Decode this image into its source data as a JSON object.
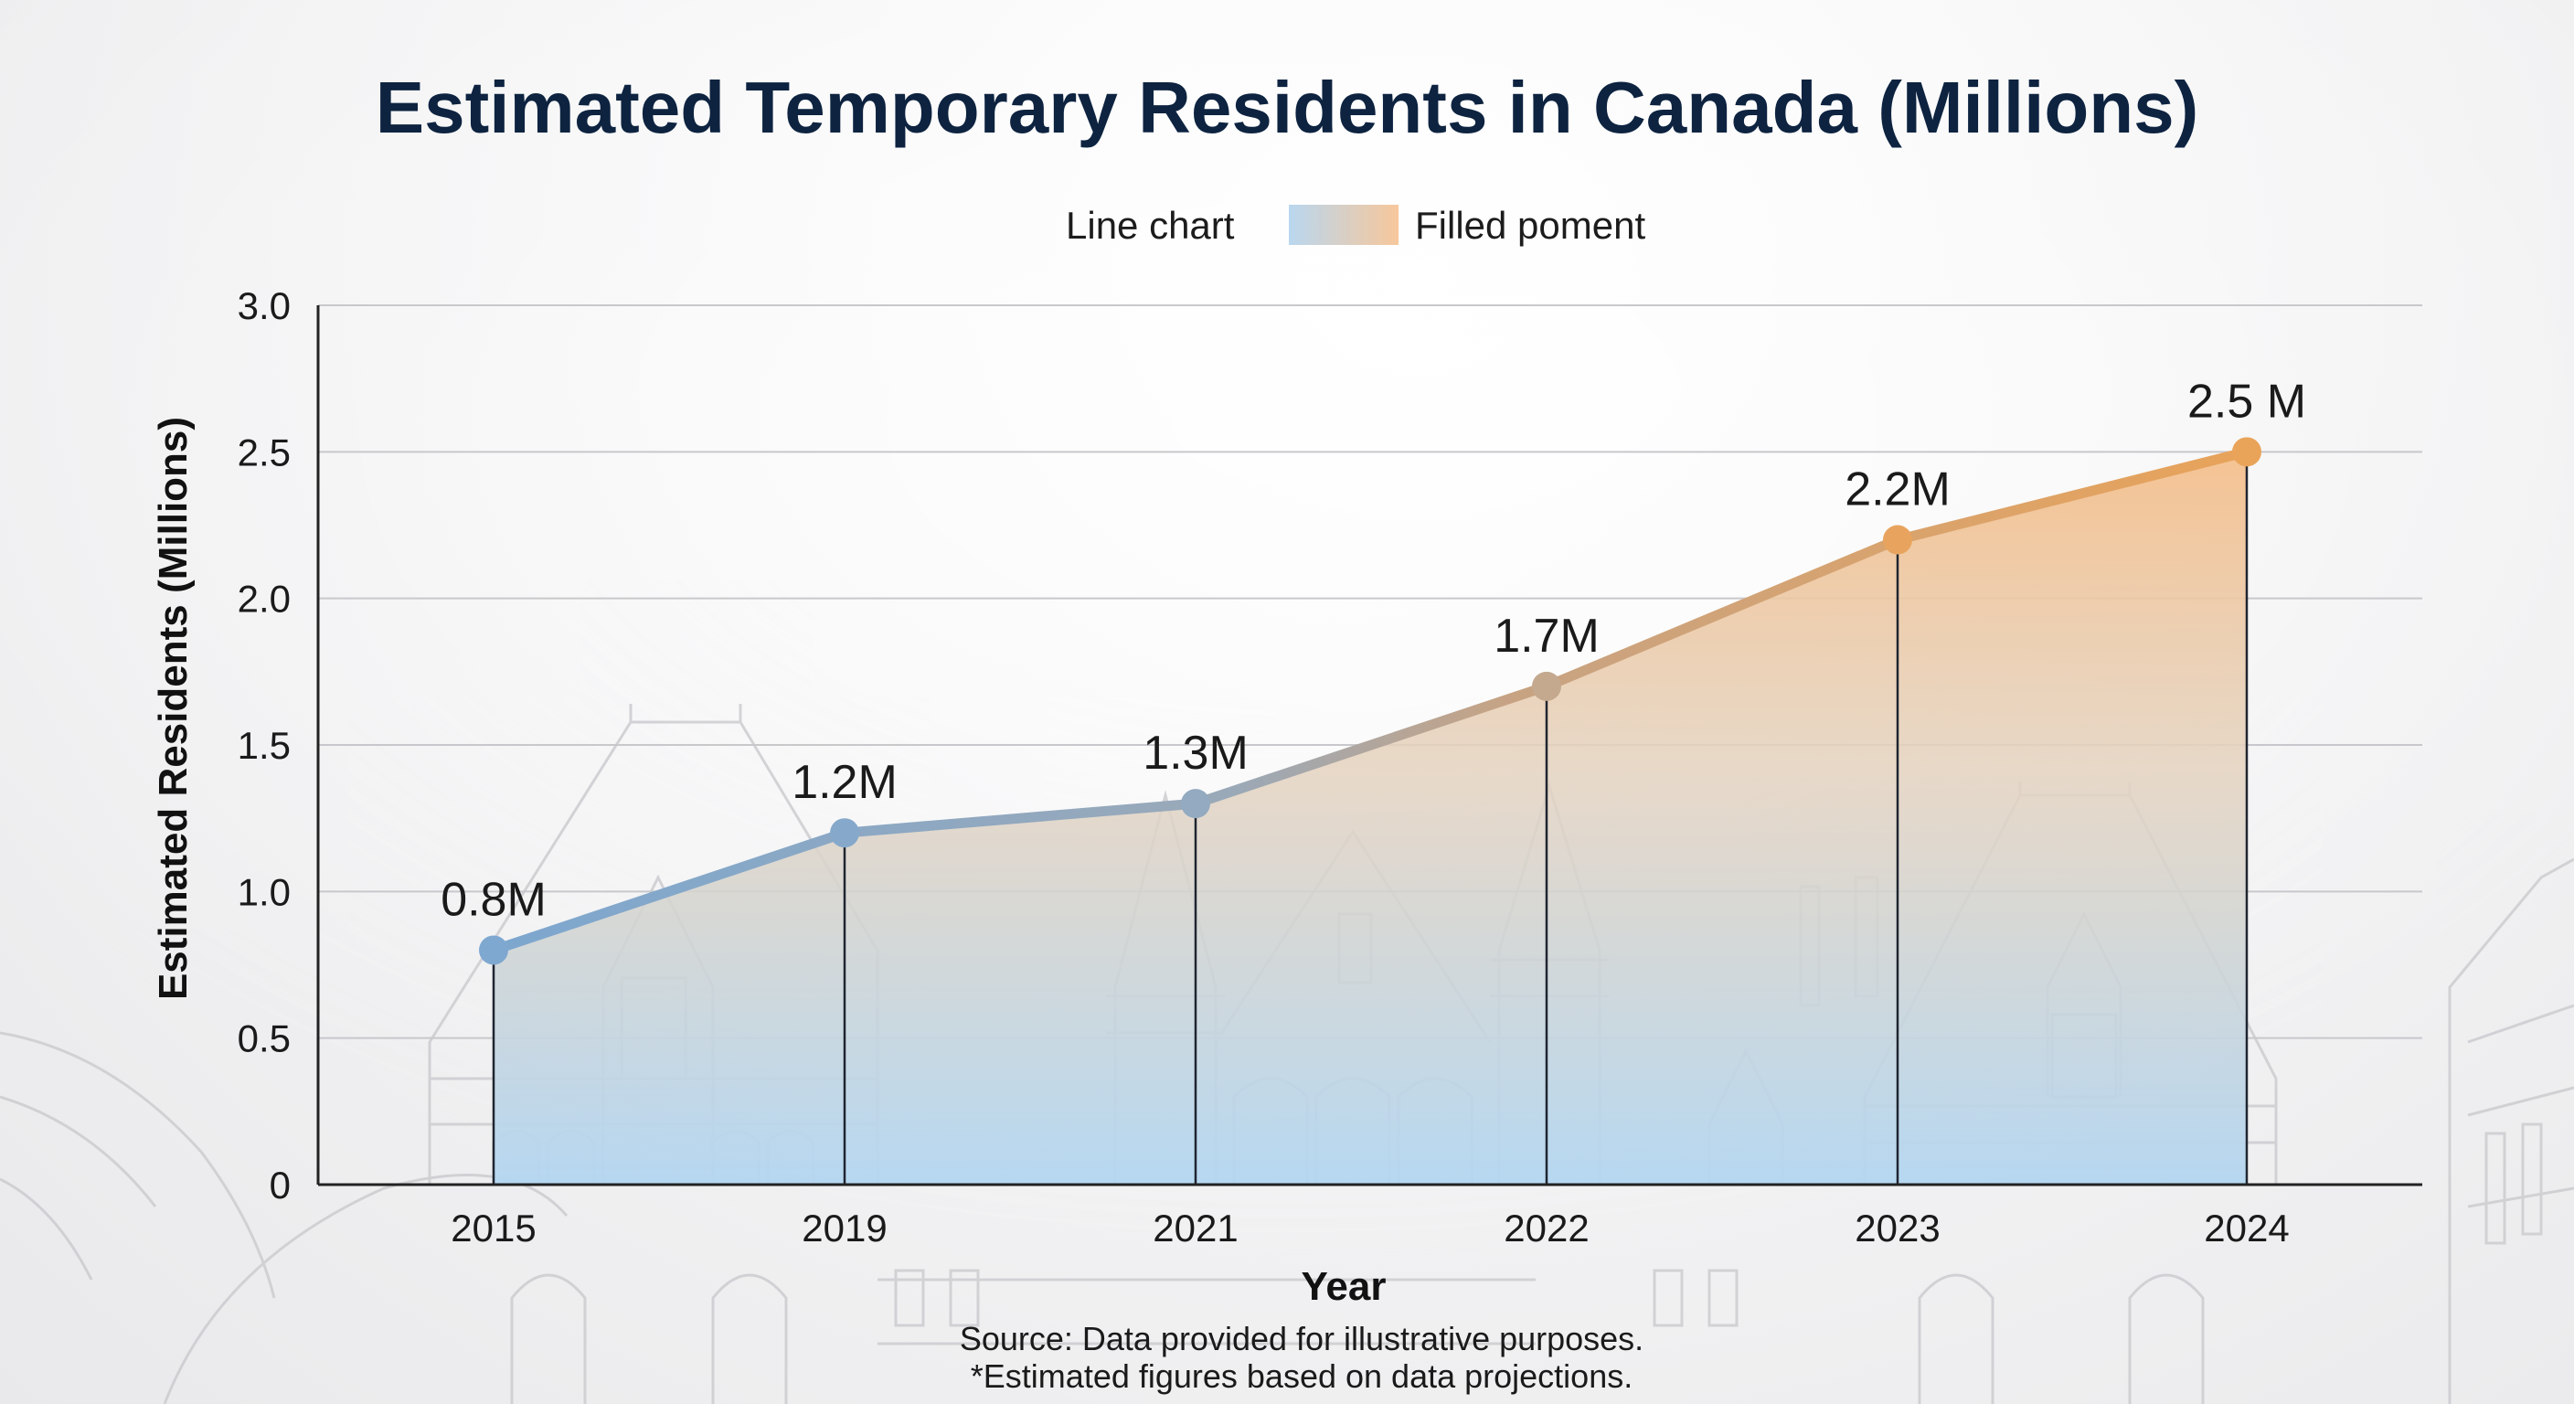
{
  "title": "Estimated Temporary Residents in Canada (Millions)",
  "legend": [
    {
      "label": "Line chart",
      "swatch": "line"
    },
    {
      "label": "Filled poment",
      "swatch": "area"
    }
  ],
  "colors": {
    "title": "#0d2340",
    "line_start": "#7da7cf",
    "line_end": "#e8a35a",
    "fill_top": "#f5c08e",
    "fill_bottom": "#b3d6f1",
    "grid": "#c8c8cc",
    "axis": "#222222"
  },
  "chart_data": {
    "type": "area",
    "categories": [
      "2015",
      "2019",
      "2021",
      "2022",
      "2023",
      "2024"
    ],
    "values": [
      0.8,
      1.2,
      1.3,
      1.7,
      2.2,
      2.5
    ],
    "data_labels": [
      "0.8M",
      "1.2M",
      "1.3M",
      "1.7M",
      "2.2M",
      "2.5 M"
    ],
    "xlabel": "Year",
    "ylabel": "Estimated Residents (Millions)",
    "ylim": [
      0,
      3.0
    ],
    "yticks": [
      0,
      0.5,
      1.0,
      1.5,
      2.0,
      2.5,
      3.0
    ],
    "ytick_labels": [
      "0",
      "0.5",
      "1.0",
      "1.5",
      "2.0",
      "2.5",
      "3.0"
    ],
    "grid": true,
    "legend_position": "top-center"
  },
  "footnotes": {
    "source": "Source: Data provided for illustrative purposes.",
    "note": "*Estimated figures based on data projections."
  }
}
